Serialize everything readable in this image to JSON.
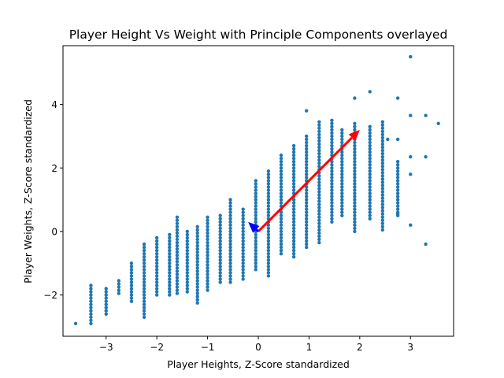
{
  "chart_data": {
    "type": "scatter",
    "title": "Player Height Vs Weight with Principle Components overlayed",
    "xlabel": "Player Heights, Z-Score standardized",
    "ylabel": "Player Weights, Z-Score standardized",
    "xlim": [
      -3.85,
      3.85
    ],
    "ylim": [
      -3.3,
      5.85
    ],
    "xticks": [
      -3,
      -2,
      -1,
      0,
      1,
      2,
      3
    ],
    "yticks": [
      -2,
      0,
      2,
      4
    ],
    "grid": false,
    "legend": "none",
    "colors": {
      "points": "#1f77b4",
      "pc1": "#ff0000",
      "pc2": "#0000ff"
    },
    "columns": [
      {
        "x": -3.6,
        "ymin": -2.9,
        "ymax": -2.9
      },
      {
        "x": -3.3,
        "ymin": -2.9,
        "ymax": -1.7
      },
      {
        "x": -3.0,
        "ymin": -2.6,
        "ymax": -1.75
      },
      {
        "x": -2.75,
        "ymin": -1.95,
        "ymax": -1.5
      },
      {
        "x": -2.5,
        "ymin": -2.2,
        "ymax": -0.95
      },
      {
        "x": -2.25,
        "ymin": -2.7,
        "ymax": -0.4
      },
      {
        "x": -2.0,
        "ymin": -2.0,
        "ymax": -0.2
      },
      {
        "x": -1.75,
        "ymin": -2.0,
        "ymax": -0.05
      },
      {
        "x": -1.6,
        "ymin": -1.95,
        "ymax": 0.5
      },
      {
        "x": -1.4,
        "ymin": -1.9,
        "ymax": 0.05
      },
      {
        "x": -1.2,
        "ymin": -2.25,
        "ymax": 0.2
      },
      {
        "x": -1.0,
        "ymin": -1.85,
        "ymax": 0.5
      },
      {
        "x": -0.75,
        "ymin": -1.6,
        "ymax": 0.5
      },
      {
        "x": -0.55,
        "ymin": -1.6,
        "ymax": 1.05
      },
      {
        "x": -0.3,
        "ymin": -1.5,
        "ymax": 0.75
      },
      {
        "x": -0.05,
        "ymin": -1.2,
        "ymax": 1.6
      },
      {
        "x": 0.2,
        "ymin": -1.4,
        "ymax": 1.9
      },
      {
        "x": 0.45,
        "ymin": -0.7,
        "ymax": 2.4
      },
      {
        "x": 0.7,
        "ymin": -0.8,
        "ymax": 2.7
      },
      {
        "x": 0.95,
        "ymin": -0.5,
        "ymax": 3.0
      },
      {
        "x": 1.2,
        "ymin": -0.35,
        "ymax": 3.45
      },
      {
        "x": 1.45,
        "ymin": 0.3,
        "ymax": 3.5
      },
      {
        "x": 1.65,
        "ymin": 0.5,
        "ymax": 3.2
      },
      {
        "x": 1.9,
        "ymin": 0.0,
        "ymax": 3.4
      },
      {
        "x": 2.2,
        "ymin": 0.4,
        "ymax": 3.3
      },
      {
        "x": 2.45,
        "ymin": 0.05,
        "ymax": 3.45
      },
      {
        "x": 2.75,
        "ymin": 0.5,
        "ymax": 2.2
      }
    ],
    "points": [
      {
        "x": 3.0,
        "y": 5.5
      },
      {
        "x": 3.0,
        "y": 3.65
      },
      {
        "x": 3.0,
        "y": 2.35
      },
      {
        "x": 3.0,
        "y": 1.8
      },
      {
        "x": 3.0,
        "y": 0.2
      },
      {
        "x": 3.3,
        "y": 3.65
      },
      {
        "x": 3.3,
        "y": 2.35
      },
      {
        "x": 3.3,
        "y": -0.4
      },
      {
        "x": 3.55,
        "y": 3.4
      },
      {
        "x": 2.75,
        "y": 4.2
      },
      {
        "x": 2.75,
        "y": 2.9
      },
      {
        "x": 2.75,
        "y": 0.55
      },
      {
        "x": 2.2,
        "y": 4.4
      },
      {
        "x": 1.9,
        "y": 4.2
      },
      {
        "x": 0.95,
        "y": 3.8
      },
      {
        "x": 2.55,
        "y": 2.9
      },
      {
        "x": 2.45,
        "y": 1.65
      }
    ],
    "vectors": [
      {
        "name": "pc1",
        "from": [
          0,
          0
        ],
        "to": [
          2.0,
          3.2
        ]
      },
      {
        "name": "pc2",
        "from": [
          0,
          0
        ],
        "to": [
          -0.2,
          0.3
        ]
      }
    ]
  }
}
